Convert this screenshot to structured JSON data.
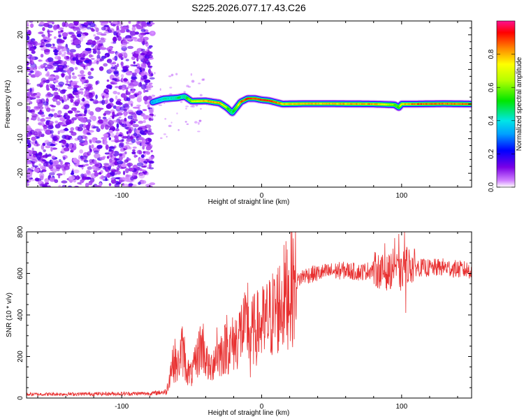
{
  "title": "S225.2026.077.17.43.C26",
  "chart_data": [
    {
      "type": "heatmap",
      "title": "S225.2026.077.17.43.C26",
      "xlabel": "Height of straight line (km)",
      "ylabel": "Frequency (Hz)",
      "xlim": [
        -168,
        150
      ],
      "ylim": [
        -24,
        24
      ],
      "x_ticks": [
        -100,
        0,
        100
      ],
      "y_ticks": [
        -20,
        -10,
        0,
        10,
        20
      ],
      "colorbar": {
        "label": "Normalized spectral amplitude",
        "range": [
          0,
          1
        ],
        "ticks": [
          "0.0",
          "0.2",
          "0.4",
          "0.6",
          "0.8"
        ]
      },
      "noise_region_x": [
        -168,
        -78
      ],
      "ridge": {
        "x": [
          -78,
          -70,
          -60,
          -55,
          -50,
          -40,
          -30,
          -25,
          -21,
          -18,
          -15,
          -10,
          -5,
          0,
          5,
          10,
          15,
          30,
          50,
          80,
          95,
          98,
          100,
          110,
          130,
          150
        ],
        "frequency": [
          0.5,
          1.5,
          1.8,
          2.2,
          0.8,
          0.9,
          0.3,
          -1.0,
          -2.5,
          -1.0,
          0.6,
          1.6,
          1.6,
          1.2,
          1.0,
          0.5,
          0.0,
          0.1,
          0.1,
          0.0,
          -0.2,
          -1.0,
          0.0,
          0.0,
          0.1,
          0.0
        ],
        "amplitude": [
          0.35,
          0.4,
          0.45,
          0.45,
          0.65,
          0.8,
          0.8,
          0.6,
          0.45,
          0.6,
          0.85,
          0.9,
          0.9,
          0.92,
          0.92,
          0.88,
          0.75,
          0.8,
          0.78,
          0.82,
          0.6,
          0.5,
          0.75,
          0.85,
          0.85,
          0.85
        ]
      }
    },
    {
      "type": "line",
      "xlabel": "Height of straight line (km)",
      "ylabel": "SNR (10 * v/v)",
      "xlim": [
        -168,
        150
      ],
      "ylim": [
        0,
        800
      ],
      "x_ticks": [
        -100,
        0,
        100
      ],
      "y_ticks": [
        0,
        200,
        400,
        600,
        800
      ],
      "series": [
        {
          "name": "SNR",
          "color": "#e83030",
          "x": [
            -168,
            -120,
            -80,
            -68,
            -64,
            -60,
            -57,
            -54,
            -50,
            -46,
            -42,
            -40,
            -37,
            -34,
            -30,
            -26,
            -22,
            -18,
            -14,
            -11,
            -8,
            -5,
            0,
            5,
            10,
            15,
            20,
            25,
            30,
            40,
            50,
            60,
            70,
            80,
            85,
            90,
            95,
            98,
            100,
            102,
            105,
            110,
            120,
            130,
            140,
            150
          ],
          "envelope": [
            18,
            20,
            22,
            30,
            170,
            150,
            240,
            140,
            110,
            200,
            260,
            190,
            130,
            190,
            210,
            240,
            250,
            280,
            330,
            330,
            310,
            330,
            350,
            380,
            420,
            470,
            530,
            560,
            590,
            600,
            610,
            615,
            605,
            620,
            610,
            600,
            640,
            600,
            590,
            650,
            640,
            630,
            625,
            630,
            620,
            615
          ],
          "spikes": [
            {
              "x": -62,
              "y": 285
            },
            {
              "x": -55,
              "y": 295
            },
            {
              "x": -44,
              "y": 345
            },
            {
              "x": -32,
              "y": 340
            },
            {
              "x": -25,
              "y": 400
            },
            {
              "x": -10,
              "y": 555
            },
            {
              "x": -12,
              "y": 420
            },
            {
              "x": -8,
              "y": 100
            },
            {
              "x": 2,
              "y": 235
            },
            {
              "x": 88,
              "y": 745
            },
            {
              "x": 95,
              "y": 770
            },
            {
              "x": 98,
              "y": 790
            },
            {
              "x": 102,
              "y": 800
            },
            {
              "x": 103,
              "y": 410
            },
            {
              "x": 92,
              "y": 525
            },
            {
              "x": 85,
              "y": 540
            }
          ]
        }
      ]
    }
  ]
}
